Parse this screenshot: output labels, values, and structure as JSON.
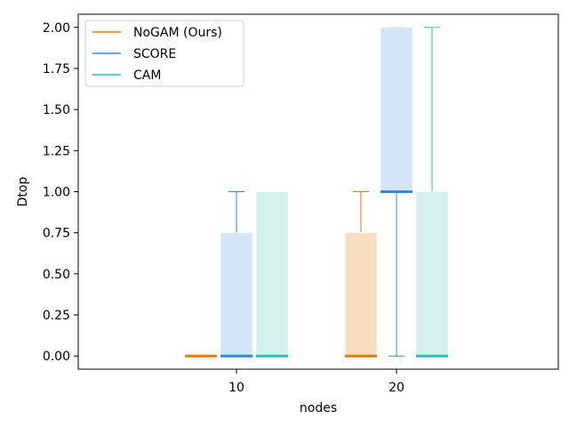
{
  "chart_data": {
    "type": "boxplot",
    "title": "",
    "xlabel": "nodes",
    "ylabel": "Dtop",
    "categories": [
      "10",
      "20"
    ],
    "ylim": [
      -0.08,
      2.08
    ],
    "yticks": [
      "0.00",
      "0.25",
      "0.50",
      "0.75",
      "1.00",
      "1.25",
      "1.50",
      "1.75",
      "2.00"
    ],
    "grid": false,
    "legend_position": "top-left",
    "series": [
      {
        "name": "NoGAM (Ours)",
        "color": "#e07b10",
        "fill": "#f8dcc0",
        "boxes": [
          {
            "category": "10",
            "min": 0,
            "q1": 0,
            "median": 0,
            "q3": 0,
            "max": 0
          },
          {
            "category": "20",
            "min": 0,
            "q1": 0,
            "median": 0,
            "q3": 0.75,
            "max": 1.0
          }
        ]
      },
      {
        "name": "SCORE",
        "color": "#2a8bd8",
        "fill": "#d3e5f7",
        "boxes": [
          {
            "category": "10",
            "min": 0,
            "q1": 0,
            "median": 0,
            "q3": 0.75,
            "max": 1.0
          },
          {
            "category": "20",
            "min": 0,
            "q1": 1.0,
            "median": 1.0,
            "q3": 2.0,
            "max": 2.0
          }
        ]
      },
      {
        "name": "CAM",
        "color": "#2bbfb3",
        "fill": "#d5f1ef",
        "boxes": [
          {
            "category": "10",
            "min": 0,
            "q1": 0,
            "median": 0,
            "q3": 1.0,
            "max": 1.0
          },
          {
            "category": "20",
            "min": 0,
            "q1": 0,
            "median": 0,
            "q3": 1.0,
            "max": 2.0
          }
        ]
      }
    ]
  }
}
